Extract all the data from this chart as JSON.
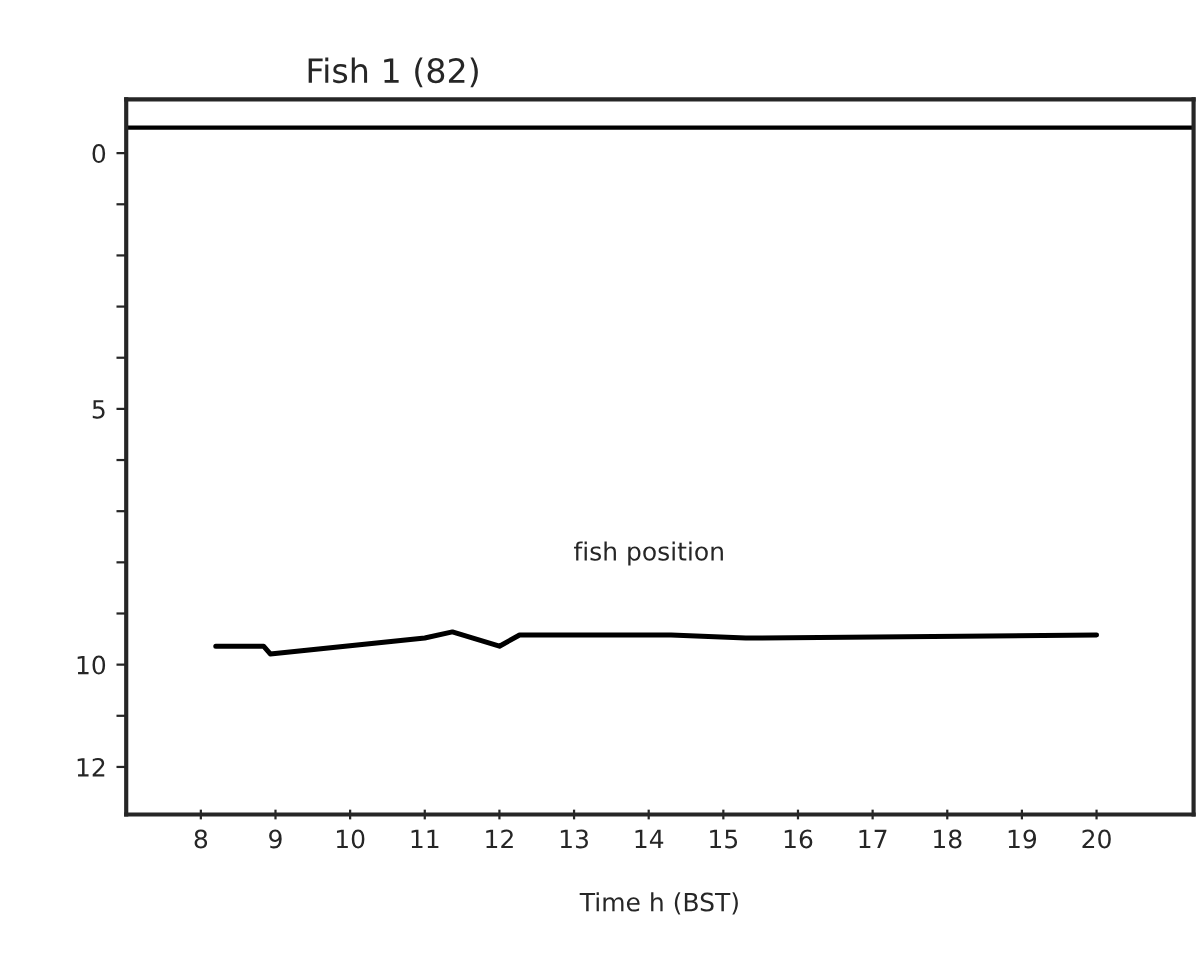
{
  "chart_data": {
    "type": "line",
    "title": "Fish 1 (82)",
    "xlabel": "Time h (BST)",
    "series": [
      {
        "color": "#000000",
        "x": [
          8.2,
          8.84,
          8.93,
          11.0,
          11.37,
          12.0,
          12.27,
          14.3,
          15.3,
          20.0
        ],
        "values": [
          9.64,
          9.64,
          9.79,
          9.48,
          9.36,
          9.64,
          9.42,
          9.42,
          9.48,
          9.42
        ]
      }
    ],
    "annotations": [
      "fish position"
    ],
    "ref_lines": [
      {
        "axis": "y",
        "value": -0.5,
        "color": "#000000"
      }
    ],
    "xlim": [
      7.0,
      21.3
    ],
    "xticks": [
      8,
      9,
      10,
      11,
      12,
      13,
      14,
      15,
      16,
      17,
      18,
      19,
      20
    ],
    "ylim": [
      12.93,
      -1.05
    ],
    "yticks": [
      0,
      {
        "value": 1,
        "label": null
      },
      {
        "value": 2,
        "label": null
      },
      {
        "value": 3,
        "label": null
      },
      {
        "value": 4,
        "label": null
      },
      5,
      {
        "value": 6,
        "label": null
      },
      {
        "value": 7,
        "label": null
      },
      {
        "value": 8,
        "label": null
      },
      {
        "value": 9,
        "label": null
      },
      10,
      {
        "value": 11,
        "label": null
      },
      12
    ],
    "grid": false,
    "marker": "none",
    "line_style": "solid",
    "legend": false
  }
}
